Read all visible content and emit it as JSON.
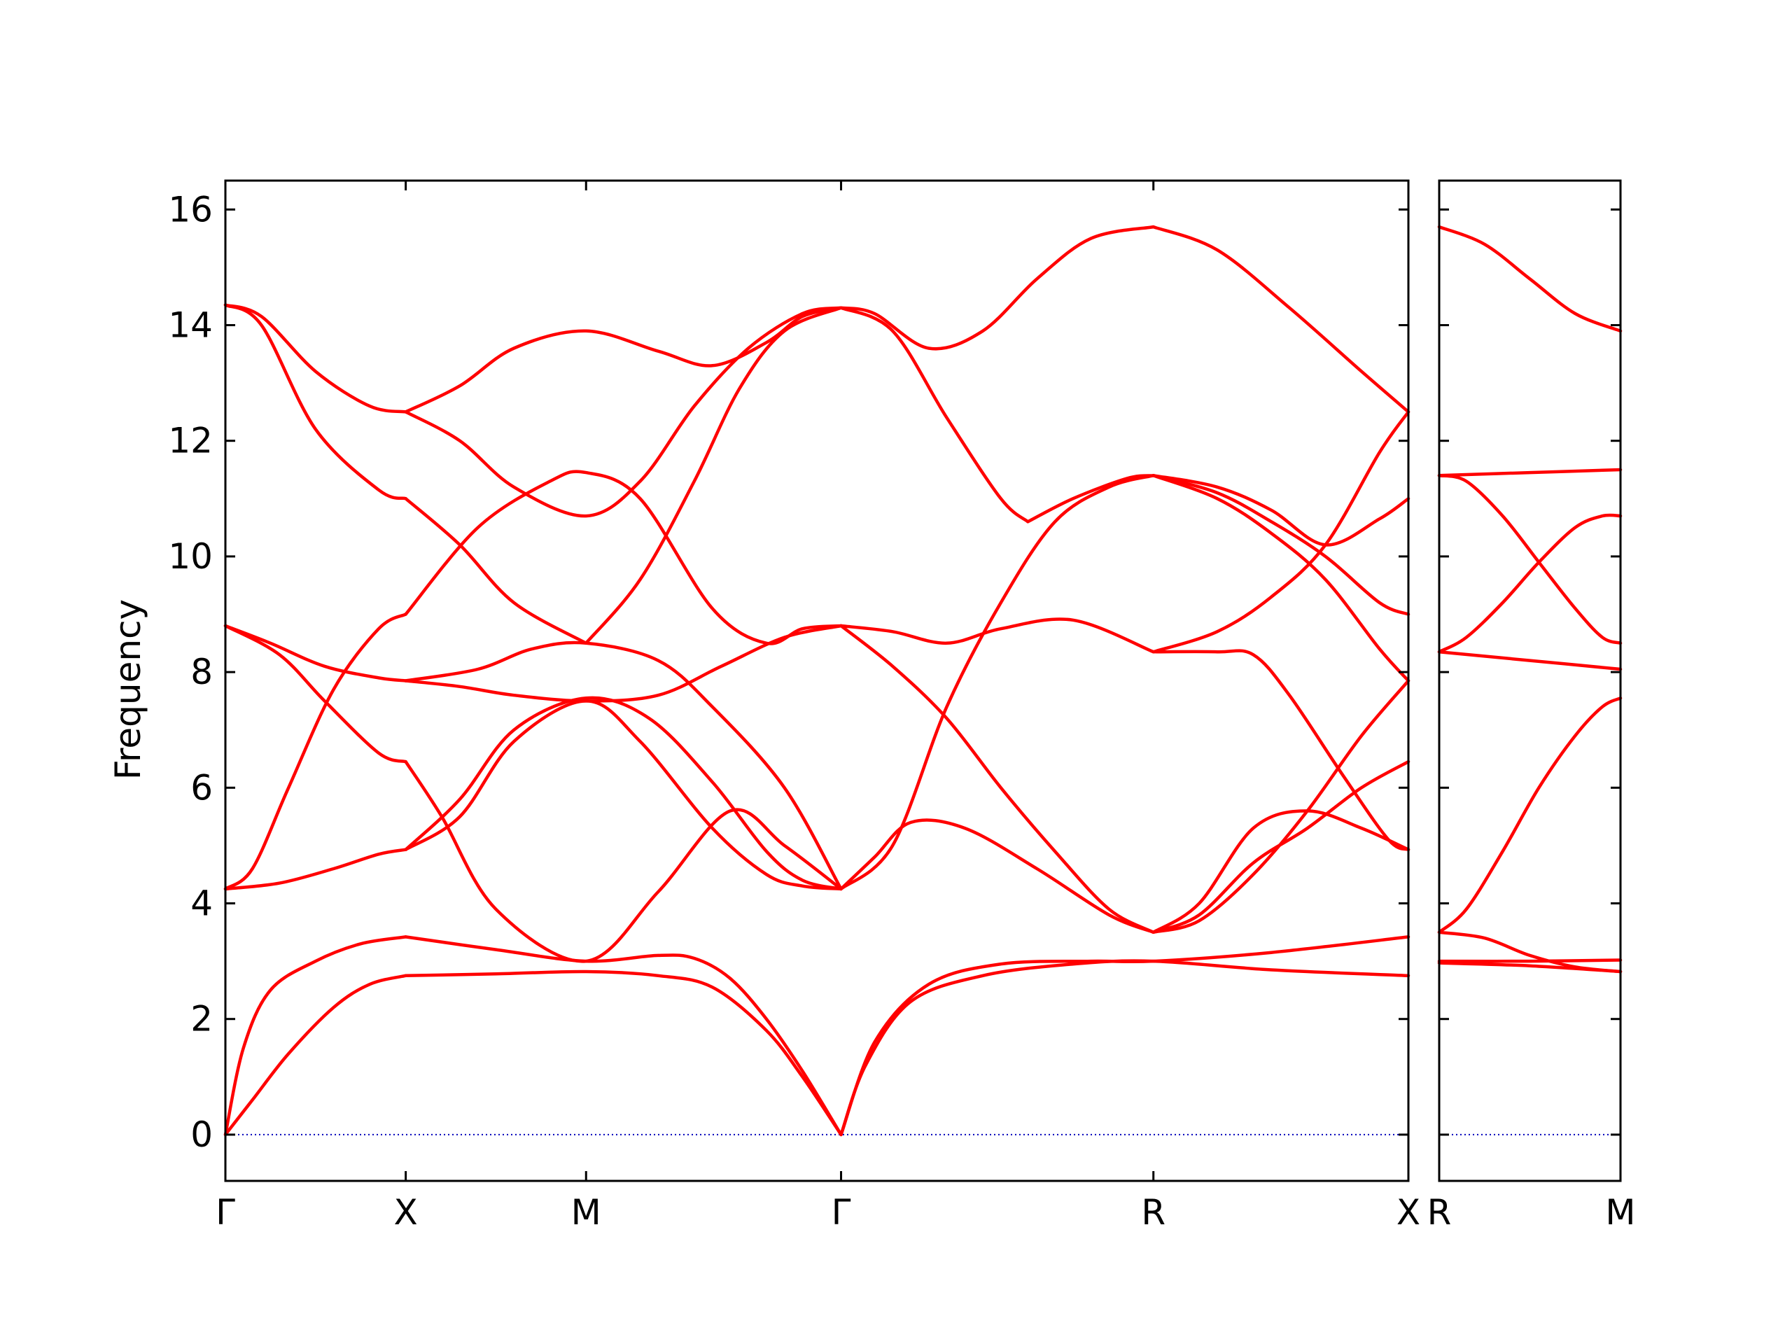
{
  "chart_data": [
    {
      "type": "line",
      "title": "",
      "xlabel": "",
      "ylabel": "Frequency",
      "ylim": [
        -0.8,
        16.5
      ],
      "yticks": [
        0,
        2,
        4,
        6,
        8,
        10,
        12,
        14,
        16
      ],
      "grid": false,
      "legend": "none",
      "line_color": "#ff0000",
      "zero_line_color": "#0000bb",
      "x_ticks": [
        {
          "label": "Γ",
          "x": 0.0
        },
        {
          "label": "X",
          "x": 1.0
        },
        {
          "label": "M",
          "x": 2.0
        },
        {
          "label": "Γ",
          "x": 3.414
        },
        {
          "label": "R",
          "x": 5.146
        },
        {
          "label": "X",
          "x": 6.56
        }
      ],
      "xlim": [
        0.0,
        6.56
      ],
      "series": [
        {
          "x": [
            0.0,
            0.15,
            0.35,
            0.6,
            0.8,
            1.0
          ],
          "y": [
            0.0,
            0.6,
            1.4,
            2.2,
            2.6,
            2.75
          ]
        },
        {
          "x": [
            0.0,
            0.1,
            0.25,
            0.5,
            0.75,
            1.0
          ],
          "y": [
            0.0,
            1.5,
            2.5,
            3.0,
            3.3,
            3.42
          ]
        },
        {
          "x": [
            1.0,
            1.5,
            2.0,
            2.4,
            2.7,
            3.0,
            3.2,
            3.414
          ],
          "y": [
            2.75,
            2.78,
            2.82,
            2.75,
            2.55,
            1.8,
            1.0,
            0.0
          ]
        },
        {
          "x": [
            1.0,
            1.5,
            2.0,
            2.4,
            2.6,
            2.8,
            3.0,
            3.2,
            3.414
          ],
          "y": [
            3.42,
            3.2,
            3.0,
            3.1,
            3.05,
            2.7,
            2.0,
            1.1,
            0.0
          ]
        },
        {
          "x": [
            3.414,
            3.6,
            3.9,
            4.3,
            4.8,
            5.146,
            5.8,
            6.56
          ],
          "y": [
            0.0,
            1.6,
            2.6,
            2.95,
            3.0,
            3.0,
            3.15,
            3.42
          ]
        },
        {
          "x": [
            3.414,
            3.55,
            3.8,
            4.2,
            4.7,
            5.146,
            5.8,
            6.56
          ],
          "y": [
            0.0,
            1.2,
            2.3,
            2.75,
            2.95,
            3.0,
            2.85,
            2.75
          ]
        },
        {
          "x": [
            0.0,
            0.3,
            0.6,
            0.85,
            1.0
          ],
          "y": [
            4.25,
            4.35,
            4.6,
            4.85,
            4.93
          ]
        },
        {
          "x": [
            0.0,
            0.15,
            0.35,
            0.6,
            0.85,
            1.0
          ],
          "y": [
            4.25,
            4.6,
            6.0,
            7.7,
            8.75,
            9.0
          ]
        },
        {
          "x": [
            1.0,
            1.4,
            1.8,
            2.0,
            2.3,
            2.7,
            3.0,
            3.2,
            3.414
          ],
          "y": [
            9.0,
            10.5,
            11.3,
            11.45,
            11.0,
            9.1,
            8.5,
            8.75,
            8.8
          ]
        },
        {
          "x": [
            0.0,
            0.25,
            0.55,
            0.85,
            1.0
          ],
          "y": [
            8.8,
            8.5,
            8.1,
            7.9,
            7.85
          ]
        },
        {
          "x": [
            0.0,
            0.3,
            0.55,
            0.85,
            1.0
          ],
          "y": [
            8.8,
            8.3,
            7.5,
            6.6,
            6.45
          ]
        },
        {
          "x": [
            1.0,
            1.3,
            1.6,
            2.0,
            2.4,
            2.75,
            3.1,
            3.414
          ],
          "y": [
            7.85,
            7.75,
            7.6,
            7.5,
            7.6,
            8.1,
            8.6,
            8.8
          ]
        },
        {
          "x": [
            1.0,
            1.4,
            1.7,
            2.0,
            2.4,
            2.7,
            3.1,
            3.414
          ],
          "y": [
            7.85,
            8.05,
            8.4,
            8.5,
            8.2,
            7.4,
            6.0,
            4.25
          ]
        },
        {
          "x": [
            0.0,
            0.2,
            0.5,
            0.8,
            1.0
          ],
          "y": [
            14.35,
            14.15,
            13.2,
            12.6,
            12.5
          ]
        },
        {
          "x": [
            0.0,
            0.2,
            0.5,
            0.85,
            1.0
          ],
          "y": [
            14.35,
            14.0,
            12.2,
            11.15,
            11.0
          ]
        },
        {
          "x": [
            1.0,
            1.3,
            1.6,
            2.0,
            2.4,
            2.7,
            3.0,
            3.2,
            3.414
          ],
          "y": [
            12.5,
            12.95,
            13.6,
            13.9,
            13.55,
            13.3,
            13.7,
            14.15,
            14.3
          ]
        },
        {
          "x": [
            1.0,
            1.3,
            1.6,
            2.0,
            2.3,
            2.6,
            2.9,
            3.2,
            3.414
          ],
          "y": [
            12.5,
            12.0,
            11.2,
            10.7,
            11.3,
            12.6,
            13.6,
            14.2,
            14.3
          ]
        },
        {
          "x": [
            1.0,
            1.3,
            1.6,
            2.0
          ],
          "y": [
            11.0,
            10.2,
            9.2,
            8.5
          ]
        },
        {
          "x": [
            2.0,
            2.3,
            2.6,
            2.85,
            3.1,
            3.414
          ],
          "y": [
            8.5,
            9.6,
            11.3,
            12.9,
            13.9,
            14.3
          ]
        },
        {
          "x": [
            1.0,
            1.3,
            1.6,
            2.0,
            2.35,
            2.7,
            3.0,
            3.2,
            3.414
          ],
          "y": [
            4.93,
            5.8,
            7.0,
            7.55,
            7.2,
            6.1,
            4.9,
            4.4,
            4.25
          ]
        },
        {
          "x": [
            1.0,
            1.3,
            1.6,
            2.0,
            2.3,
            2.7,
            3.0,
            3.2,
            3.414
          ],
          "y": [
            4.93,
            5.5,
            6.8,
            7.5,
            6.8,
            5.3,
            4.5,
            4.3,
            4.25
          ]
        },
        {
          "x": [
            1.0,
            1.2,
            1.5,
            2.0,
            2.4,
            2.8,
            3.1,
            3.414
          ],
          "y": [
            6.45,
            5.5,
            3.9,
            3.0,
            4.2,
            5.6,
            5.0,
            4.25
          ]
        },
        {
          "x": [
            3.414,
            3.6,
            3.9,
            4.2,
            4.5,
            4.8,
            5.146
          ],
          "y": [
            14.3,
            14.2,
            13.6,
            13.9,
            14.8,
            15.5,
            15.7
          ]
        },
        {
          "x": [
            5.146,
            5.5,
            5.9,
            6.3,
            6.56
          ],
          "y": [
            15.7,
            15.3,
            14.3,
            13.2,
            12.5
          ]
        },
        {
          "x": [
            3.414,
            3.7,
            4.0,
            4.3,
            4.45
          ],
          "y": [
            14.3,
            13.9,
            12.4,
            11.0,
            10.6
          ]
        },
        {
          "x": [
            4.45,
            4.7,
            5.0,
            5.146
          ],
          "y": [
            10.6,
            11.0,
            11.35,
            11.4
          ]
        },
        {
          "x": [
            3.414,
            3.7,
            4.0,
            4.3,
            4.6,
            4.9,
            5.146
          ],
          "y": [
            4.25,
            5.0,
            7.4,
            9.2,
            10.6,
            11.2,
            11.4
          ]
        },
        {
          "x": [
            3.414,
            3.7,
            4.0,
            4.3,
            4.7,
            5.146
          ],
          "y": [
            8.8,
            8.7,
            8.5,
            8.75,
            8.9,
            8.35
          ]
        },
        {
          "x": [
            3.414,
            3.6,
            3.8,
            4.1,
            4.5,
            4.9,
            5.146
          ],
          "y": [
            4.25,
            4.8,
            5.4,
            5.3,
            4.6,
            3.8,
            3.5
          ]
        },
        {
          "x": [
            3.414,
            3.7,
            4.0,
            4.3,
            4.6,
            4.9,
            5.146
          ],
          "y": [
            8.8,
            8.1,
            7.2,
            6.0,
            4.9,
            3.9,
            3.5
          ]
        },
        {
          "x": [
            5.146,
            5.5,
            5.8,
            6.1,
            6.4,
            6.56
          ],
          "y": [
            11.4,
            11.2,
            10.8,
            10.2,
            10.65,
            11.0
          ]
        },
        {
          "x": [
            5.146,
            5.5,
            5.8,
            6.1,
            6.4,
            6.56
          ],
          "y": [
            11.4,
            11.1,
            10.6,
            10.0,
            9.2,
            9.0
          ]
        },
        {
          "x": [
            5.146,
            5.5,
            5.8,
            6.1,
            6.4,
            6.56
          ],
          "y": [
            11.4,
            11.0,
            10.4,
            9.6,
            8.4,
            7.85
          ]
        },
        {
          "x": [
            5.146,
            5.5,
            5.8,
            6.1,
            6.4,
            6.56
          ],
          "y": [
            8.35,
            8.7,
            9.3,
            10.2,
            11.8,
            12.5
          ]
        },
        {
          "x": [
            5.146,
            5.5,
            5.7,
            5.9,
            6.2,
            6.45,
            6.56
          ],
          "y": [
            8.35,
            8.35,
            8.3,
            7.6,
            6.2,
            5.1,
            4.93
          ]
        },
        {
          "x": [
            5.146,
            5.4,
            5.7,
            6.0,
            6.3,
            6.56
          ],
          "y": [
            3.5,
            4.0,
            5.3,
            5.6,
            5.3,
            4.93
          ]
        },
        {
          "x": [
            5.146,
            5.4,
            5.7,
            6.0,
            6.3,
            6.56
          ],
          "y": [
            3.5,
            3.8,
            4.7,
            5.3,
            6.0,
            6.45
          ]
        },
        {
          "x": [
            5.146,
            5.4,
            5.7,
            6.0,
            6.3,
            6.56
          ],
          "y": [
            3.5,
            3.7,
            4.5,
            5.6,
            6.9,
            7.85
          ]
        }
      ]
    },
    {
      "type": "line",
      "title": "",
      "xlabel": "",
      "ylabel": "",
      "ylim": [
        -0.8,
        16.5
      ],
      "grid": false,
      "legend": "none",
      "line_color": "#ff0000",
      "zero_line_color": "#0000bb",
      "x_ticks": [
        {
          "label": "R",
          "x": 0.0
        },
        {
          "label": "M",
          "x": 1.0
        }
      ],
      "xlim": [
        0.0,
        1.0
      ],
      "series": [
        {
          "x": [
            0.0,
            0.25,
            0.5,
            0.75,
            1.0
          ],
          "y": [
            15.7,
            15.4,
            14.8,
            14.2,
            13.9
          ]
        },
        {
          "x": [
            0.0,
            0.5,
            1.0
          ],
          "y": [
            11.4,
            11.45,
            11.5
          ]
        },
        {
          "x": [
            0.0,
            0.15,
            0.35,
            0.55,
            0.75,
            0.9,
            1.0
          ],
          "y": [
            11.4,
            11.3,
            10.7,
            9.9,
            9.1,
            8.6,
            8.5
          ]
        },
        {
          "x": [
            0.0,
            0.15,
            0.35,
            0.55,
            0.75,
            0.9,
            1.0
          ],
          "y": [
            8.35,
            8.6,
            9.2,
            9.9,
            10.5,
            10.7,
            10.7
          ]
        },
        {
          "x": [
            0.0,
            0.5,
            1.0
          ],
          "y": [
            8.35,
            8.2,
            8.05
          ]
        },
        {
          "x": [
            0.0,
            0.15,
            0.35,
            0.55,
            0.75,
            0.9,
            1.0
          ],
          "y": [
            3.5,
            3.9,
            4.9,
            6.0,
            6.9,
            7.4,
            7.55
          ]
        },
        {
          "x": [
            0.0,
            0.25,
            0.5,
            0.75,
            1.0
          ],
          "y": [
            3.5,
            3.4,
            3.1,
            2.9,
            2.82
          ]
        },
        {
          "x": [
            0.0,
            0.5,
            1.0
          ],
          "y": [
            2.97,
            2.92,
            2.82
          ]
        },
        {
          "x": [
            0.0,
            0.5,
            1.0
          ],
          "y": [
            3.0,
            3.0,
            3.02
          ]
        }
      ]
    }
  ]
}
